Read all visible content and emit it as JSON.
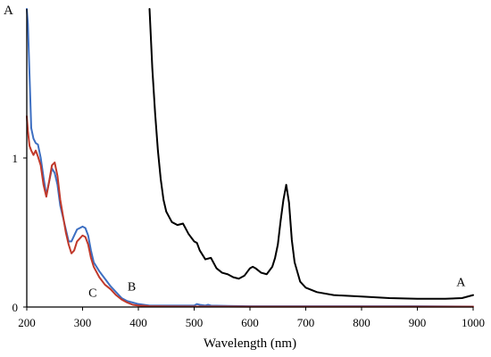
{
  "chart_data": {
    "type": "line",
    "title": "",
    "xlabel": "Wavelength (nm)",
    "ylabel": "A",
    "xlim": [
      200,
      1000
    ],
    "ylim": [
      0,
      2
    ],
    "x_ticks": [
      200,
      300,
      400,
      500,
      600,
      700,
      800,
      900,
      1000
    ],
    "y_ticks": [
      0,
      1
    ],
    "y_tick_labels": [
      "0",
      "1"
    ],
    "grid": false,
    "legend": "none",
    "annotations": [
      {
        "text": "A",
        "x": 978,
        "y": 0.14
      },
      {
        "text": "B",
        "x": 388,
        "y": 0.11
      },
      {
        "text": "C",
        "x": 318,
        "y": 0.07
      }
    ],
    "series": [
      {
        "name": "A",
        "color": "#000000",
        "x": [
          420,
          425,
          430,
          435,
          440,
          445,
          450,
          460,
          470,
          480,
          490,
          500,
          505,
          510,
          520,
          530,
          540,
          550,
          560,
          570,
          580,
          590,
          600,
          605,
          610,
          620,
          630,
          640,
          645,
          650,
          655,
          660,
          665,
          670,
          675,
          680,
          690,
          700,
          720,
          750,
          800,
          850,
          900,
          950,
          980,
          1000
        ],
        "y": [
          2.0,
          1.6,
          1.3,
          1.05,
          0.86,
          0.72,
          0.64,
          0.57,
          0.55,
          0.56,
          0.49,
          0.44,
          0.43,
          0.38,
          0.32,
          0.33,
          0.26,
          0.23,
          0.22,
          0.2,
          0.19,
          0.21,
          0.26,
          0.27,
          0.26,
          0.23,
          0.22,
          0.27,
          0.33,
          0.42,
          0.58,
          0.72,
          0.82,
          0.7,
          0.45,
          0.3,
          0.17,
          0.13,
          0.1,
          0.08,
          0.07,
          0.06,
          0.055,
          0.055,
          0.06,
          0.08
        ]
      },
      {
        "name": "B",
        "color": "#3d6fc2",
        "x": [
          200,
          202,
          205,
          208,
          212,
          216,
          220,
          225,
          230,
          235,
          240,
          245,
          250,
          255,
          260,
          265,
          270,
          275,
          280,
          285,
          290,
          295,
          300,
          305,
          310,
          315,
          320,
          330,
          340,
          350,
          360,
          370,
          380,
          390,
          400,
          410,
          420,
          450,
          500,
          505,
          510,
          520,
          525,
          530,
          550,
          600,
          700,
          800,
          900,
          1000
        ],
        "y": [
          2.0,
          1.9,
          1.55,
          1.2,
          1.13,
          1.1,
          1.09,
          1.0,
          0.87,
          0.75,
          0.84,
          0.93,
          0.9,
          0.82,
          0.68,
          0.6,
          0.52,
          0.44,
          0.44,
          0.48,
          0.52,
          0.53,
          0.54,
          0.53,
          0.48,
          0.38,
          0.3,
          0.24,
          0.19,
          0.14,
          0.1,
          0.06,
          0.04,
          0.03,
          0.02,
          0.015,
          0.01,
          0.01,
          0.01,
          0.02,
          0.015,
          0.01,
          0.015,
          0.01,
          0.008,
          0.005,
          0.005,
          0.005,
          0.005,
          0.003
        ]
      },
      {
        "name": "C",
        "color": "#c0392b",
        "x": [
          200,
          202,
          205,
          208,
          212,
          216,
          220,
          225,
          230,
          235,
          240,
          245,
          250,
          255,
          260,
          265,
          270,
          275,
          280,
          285,
          290,
          295,
          300,
          305,
          310,
          315,
          320,
          330,
          340,
          350,
          360,
          370,
          380,
          390,
          400,
          410,
          420,
          450,
          500,
          550,
          600,
          700,
          800,
          900,
          1000
        ],
        "y": [
          1.28,
          1.18,
          1.08,
          1.05,
          1.02,
          1.05,
          1.01,
          0.95,
          0.82,
          0.74,
          0.84,
          0.95,
          0.97,
          0.88,
          0.72,
          0.61,
          0.5,
          0.42,
          0.36,
          0.38,
          0.44,
          0.46,
          0.48,
          0.47,
          0.42,
          0.33,
          0.27,
          0.2,
          0.15,
          0.12,
          0.08,
          0.05,
          0.03,
          0.015,
          0.01,
          0.008,
          0.005,
          0.004,
          0.003,
          0.003,
          0.002,
          0.002,
          0.002,
          0.002,
          0.002
        ]
      }
    ]
  }
}
